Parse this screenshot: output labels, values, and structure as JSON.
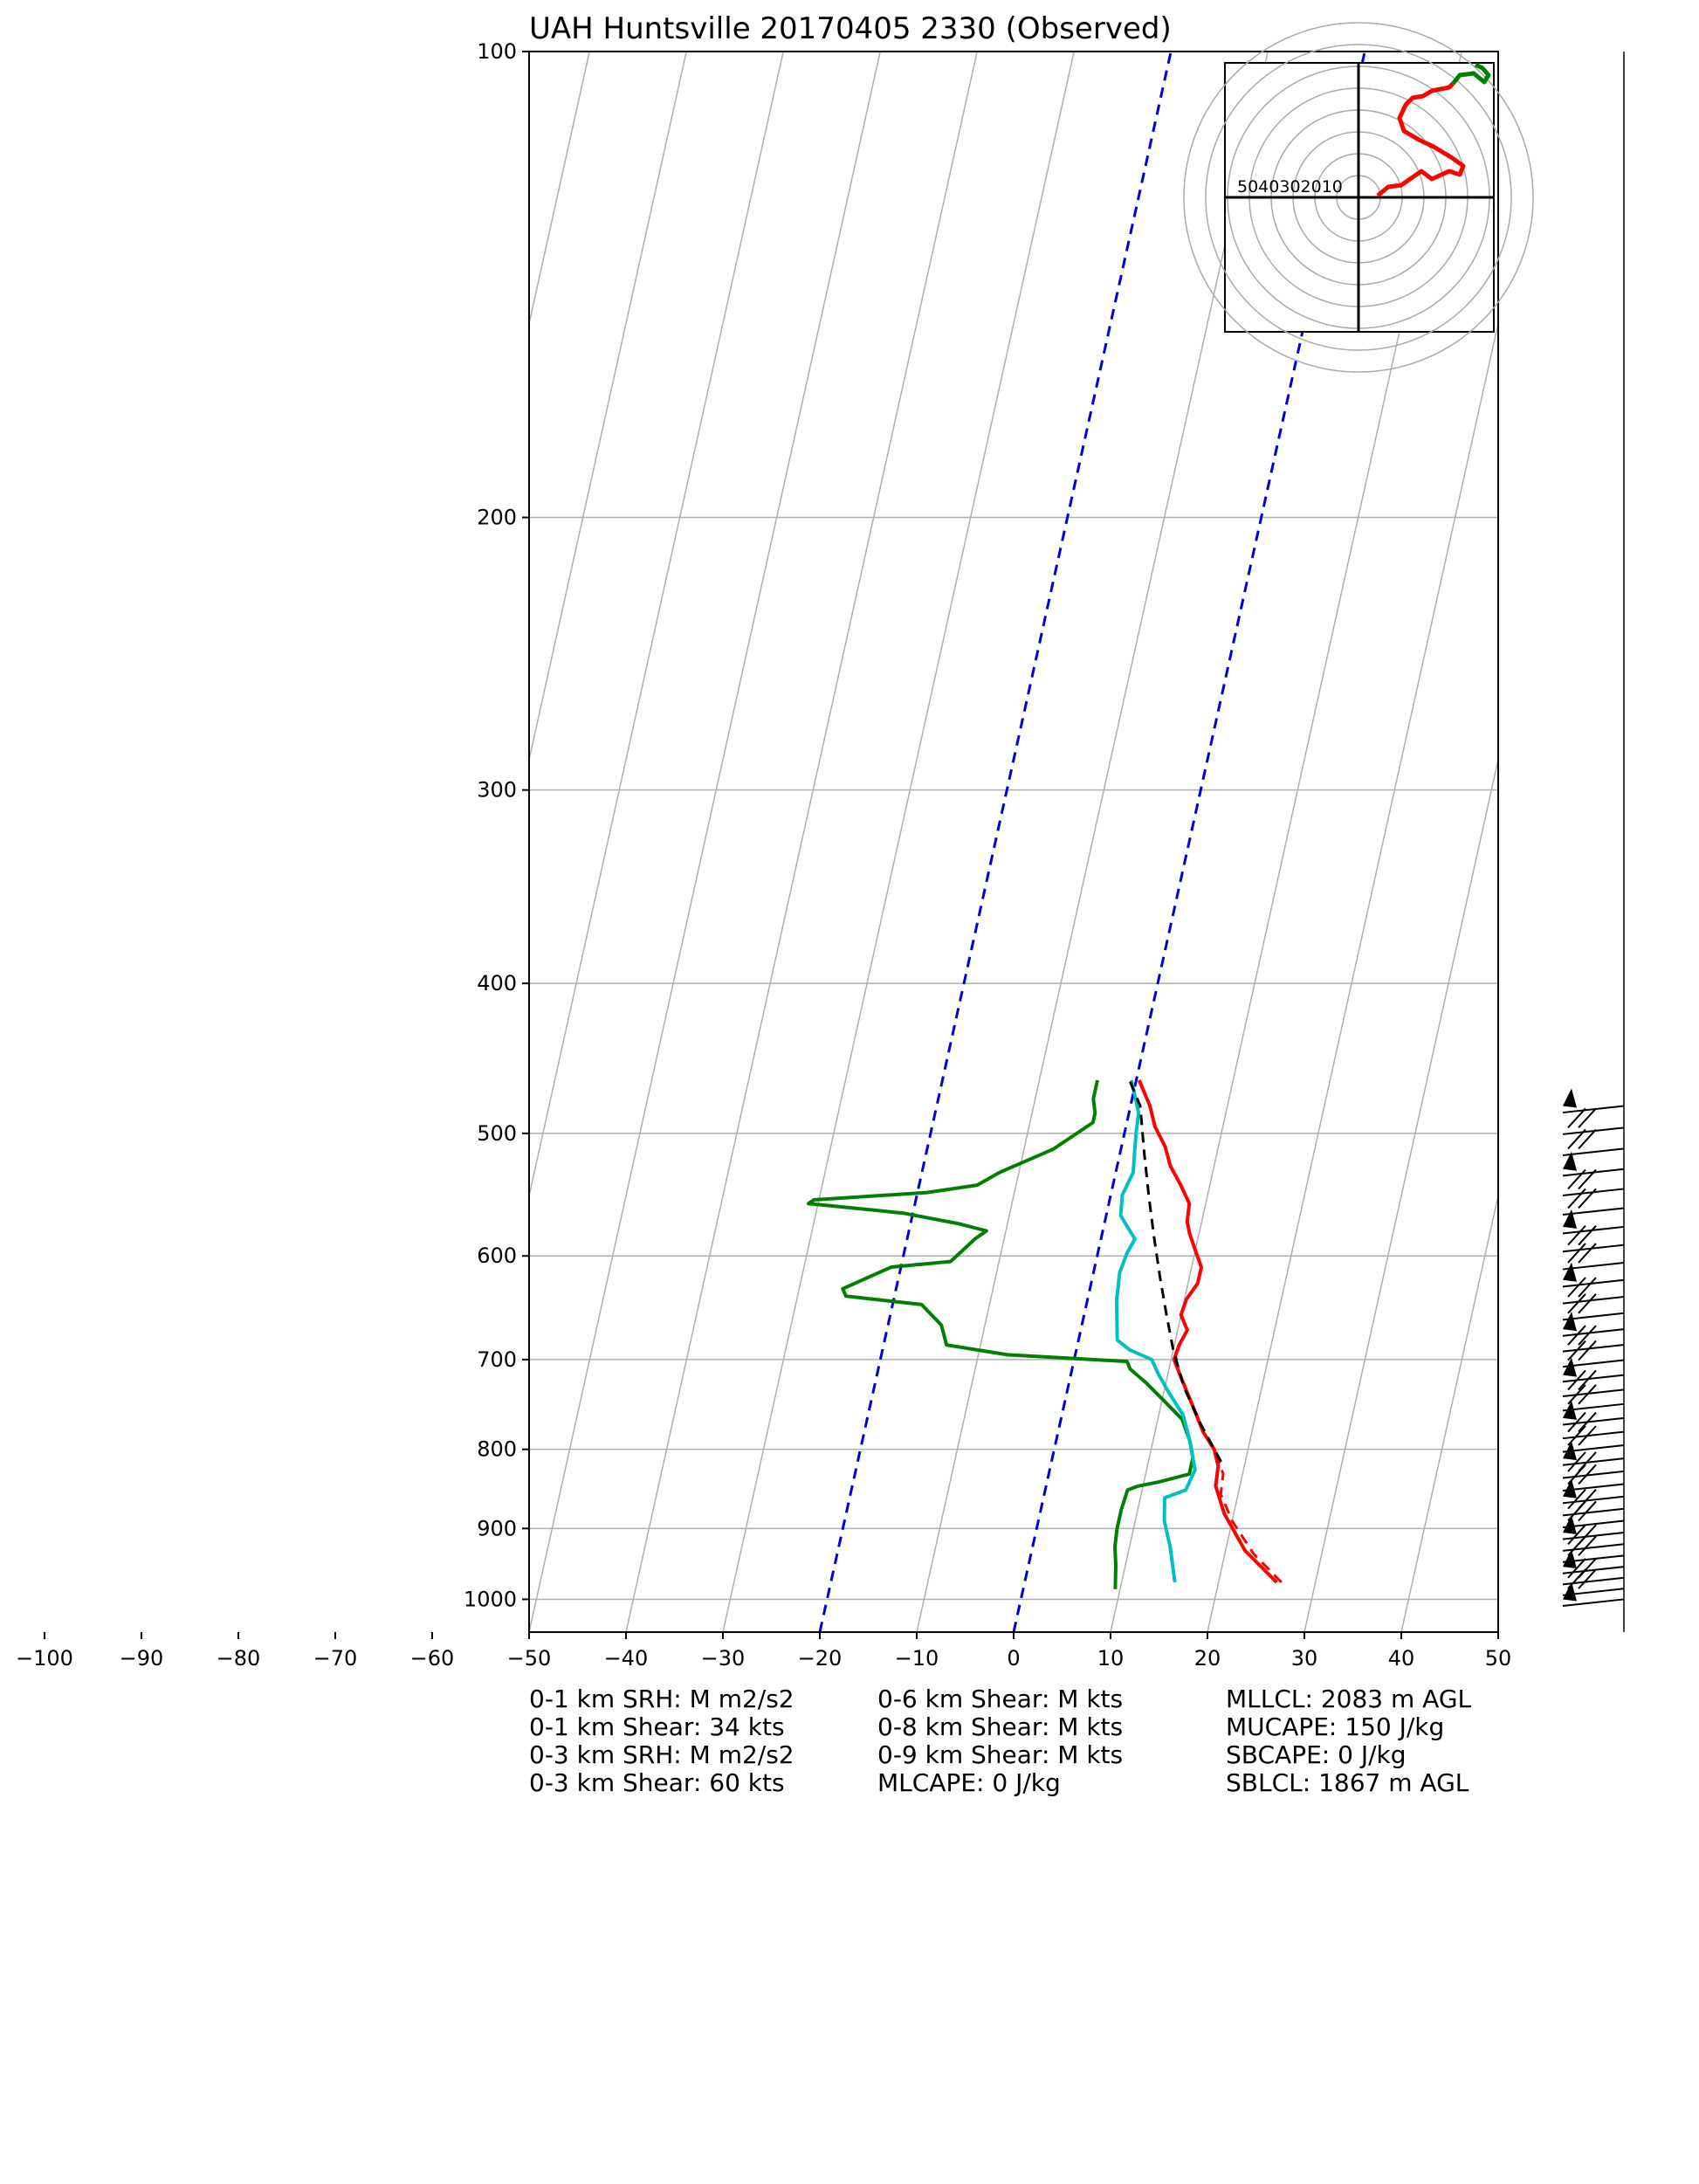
{
  "chart_data": {
    "type": "line",
    "title": "UAH Huntsville 20170405 2330   (Observed)",
    "xlabel": "",
    "ylabel": "",
    "xlim": [
      -50,
      50
    ],
    "ylim_pressure": [
      1050,
      100
    ],
    "y_log_scale": true,
    "grid": true,
    "x_tick_labels": [
      "−100",
      "−90",
      "−80",
      "−70",
      "−60",
      "−50",
      "−40",
      "−30",
      "−20",
      "−10",
      "0",
      "10",
      "20",
      "30",
      "40",
      "50"
    ],
    "x_ticks": [
      -100,
      -90,
      -80,
      -70,
      -60,
      -50,
      -40,
      -30,
      -20,
      -10,
      0,
      10,
      20,
      30,
      40,
      50
    ],
    "y_ticks": [
      100,
      200,
      300,
      400,
      500,
      600,
      700,
      800,
      900,
      1000
    ],
    "y_tick_labels": [
      "100",
      "200",
      "300",
      "400",
      "500",
      "600",
      "700",
      "800",
      "900",
      "1000"
    ],
    "isotherms": [
      -200,
      -190,
      -180,
      -170,
      -160,
      -150,
      -140,
      -130,
      -120,
      -110,
      -100,
      -90,
      -80,
      -70,
      -60,
      -50,
      -40,
      -30,
      -20,
      -10,
      0,
      10,
      20,
      30,
      40,
      50
    ],
    "dashed_blue_isotherms": [
      0,
      -20
    ],
    "series": [
      {
        "color": "#ff0000",
        "style": "solid",
        "points": [
          [
            26,
            975
          ],
          [
            22,
            930
          ],
          [
            19,
            880
          ],
          [
            17.5,
            845
          ],
          [
            17.3,
            820
          ],
          [
            16.5,
            800
          ],
          [
            15,
            780
          ],
          [
            13,
            745
          ],
          [
            11.5,
            720
          ],
          [
            10.3,
            700
          ],
          [
            10.5,
            685
          ],
          [
            11,
            670
          ],
          [
            10,
            655
          ],
          [
            10.2,
            640
          ],
          [
            11,
            625
          ],
          [
            11,
            610
          ],
          [
            10,
            595
          ],
          [
            9,
            580
          ],
          [
            8.5,
            570
          ],
          [
            8.3,
            555
          ],
          [
            7,
            540
          ],
          [
            5.5,
            525
          ],
          [
            4.5,
            510
          ],
          [
            3,
            495
          ],
          [
            2,
            480
          ],
          [
            0.3,
            462
          ]
        ]
      },
      {
        "color": "#008000",
        "style": "solid",
        "points": [
          [
            9.5,
            985
          ],
          [
            9,
            950
          ],
          [
            8.5,
            925
          ],
          [
            8.3,
            900
          ],
          [
            8.3,
            875
          ],
          [
            8.5,
            850
          ],
          [
            9.5,
            845
          ],
          [
            11.5,
            840
          ],
          [
            14.5,
            830
          ],
          [
            14.5,
            810
          ],
          [
            13.8,
            790
          ],
          [
            12.5,
            765
          ],
          [
            10.3,
            745
          ],
          [
            8,
            725
          ],
          [
            6,
            710
          ],
          [
            5.5,
            702
          ],
          [
            -7,
            695
          ],
          [
            -13.5,
            685
          ],
          [
            -14.5,
            665
          ],
          [
            -17,
            645
          ],
          [
            -25,
            637
          ],
          [
            -25.5,
            630
          ],
          [
            -21,
            610
          ],
          [
            -15,
            605
          ],
          [
            -14,
            595
          ],
          [
            -13,
            585
          ],
          [
            -12,
            578
          ],
          [
            -15,
            572
          ],
          [
            -21,
            563
          ],
          [
            -31,
            555
          ],
          [
            -30.5,
            552
          ],
          [
            -19,
            546
          ],
          [
            -14,
            540
          ],
          [
            -12,
            530
          ],
          [
            -7,
            512
          ],
          [
            -3.5,
            492
          ],
          [
            -3.5,
            485
          ],
          [
            -4,
            475
          ],
          [
            -4,
            462
          ]
        ]
      },
      {
        "color": "#00bfbf",
        "style": "solid",
        "points": [
          [
            15.5,
            975
          ],
          [
            14.2,
            925
          ],
          [
            13,
            890
          ],
          [
            12.5,
            860
          ],
          [
            14.5,
            850
          ],
          [
            15,
            825
          ],
          [
            13.8,
            790
          ],
          [
            12.5,
            760
          ],
          [
            10.5,
            735
          ],
          [
            9,
            715
          ],
          [
            8,
            700
          ],
          [
            5.5,
            690
          ],
          [
            4,
            680
          ],
          [
            3.5,
            660
          ],
          [
            3,
            640
          ],
          [
            2.7,
            615
          ],
          [
            3,
            598
          ],
          [
            3.5,
            585
          ],
          [
            2.5,
            575
          ],
          [
            1.5,
            565
          ],
          [
            1.2,
            548
          ],
          [
            1.8,
            530
          ],
          [
            1.5,
            515
          ],
          [
            1.2,
            500
          ],
          [
            1,
            485
          ],
          [
            -0.5,
            462
          ]
        ]
      },
      {
        "color": "#ff0000",
        "style": "dashed",
        "points": [
          [
            26.5,
            975
          ],
          [
            23,
            935
          ],
          [
            20,
            890
          ],
          [
            18.2,
            855
          ],
          [
            18,
            830
          ],
          [
            16.8,
            805
          ],
          [
            15,
            780
          ],
          [
            13,
            745
          ],
          [
            11.5,
            720
          ],
          [
            10.5,
            700
          ],
          [
            10.5,
            690
          ]
        ]
      },
      {
        "color": "#000000",
        "style": "dashed",
        "points": [
          [
            17.5,
            815
          ],
          [
            14.5,
            770
          ],
          [
            12,
            730
          ],
          [
            10,
            690
          ],
          [
            8.5,
            655
          ],
          [
            7,
            620
          ],
          [
            5.5,
            585
          ],
          [
            4,
            550
          ],
          [
            2.5,
            515
          ],
          [
            1,
            480
          ],
          [
            -0.7,
            462
          ]
        ]
      }
    ],
    "hodograph": {
      "ring_labels": "5040302010",
      "line_colors": [
        "#ff0000",
        "#008000"
      ]
    },
    "wind_barbs_pressure_range": [
      1000,
      480
    ]
  },
  "stats": {
    "col1": [
      "0-1 km SRH: M m2/s2",
      "0-1 km Shear: 34 kts",
      "0-3 km SRH: M m2/s2",
      "0-3 km Shear: 60 kts"
    ],
    "col2": [
      "0-6 km Shear: M kts",
      "0-8 km Shear: M kts",
      "0-9 km Shear: M kts",
      "MLCAPE: 0 J/kg"
    ],
    "col3": [
      "MLLCL: 2083 m AGL",
      "MUCAPE: 150 J/kg",
      "SBCAPE: 0 J/kg",
      "SBLCL: 1867 m AGL"
    ]
  }
}
